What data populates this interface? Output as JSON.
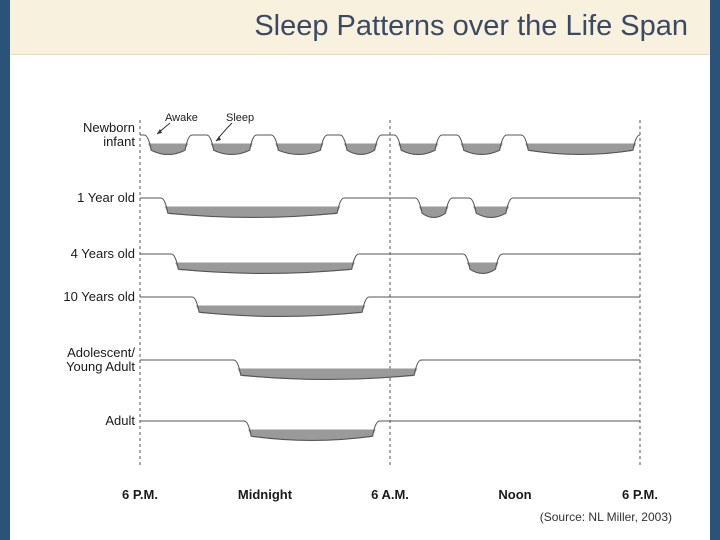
{
  "slide": {
    "title": "Sleep Patterns over the Life Span",
    "source": "(Source: NL Miller, 2003)"
  },
  "diagram": {
    "legend": {
      "awake": "Awake",
      "sleep": "Sleep"
    },
    "time_labels": [
      "6 P.M.",
      "Midnight",
      "6 A.M.",
      "Noon",
      "6 P.M."
    ],
    "rows": [
      {
        "label_lines": [
          "Newborn",
          "infant"
        ],
        "sleep_periods": [
          [
            18.2,
            20.5
          ],
          [
            21.2,
            23.6
          ],
          [
            24.3,
            27.0
          ],
          [
            27.6,
            29.6
          ],
          [
            30.2,
            32.5
          ],
          [
            33.2,
            35.6
          ],
          [
            36.3,
            42.0
          ]
        ]
      },
      {
        "label_lines": [
          "1 Year old"
        ],
        "sleep_periods": [
          [
            19.0,
            27.8
          ],
          [
            31.2,
            33.0
          ],
          [
            33.8,
            35.9
          ]
        ]
      },
      {
        "label_lines": [
          "4 Years old"
        ],
        "sleep_periods": [
          [
            19.5,
            28.5
          ],
          [
            33.5,
            35.4
          ]
        ]
      },
      {
        "label_lines": [
          "10 Years old"
        ],
        "sleep_periods": [
          [
            20.5,
            29.0
          ]
        ]
      },
      {
        "label_lines": [
          "Adolescent/",
          "Young Adult"
        ],
        "sleep_periods": [
          [
            22.5,
            31.5
          ]
        ]
      },
      {
        "label_lines": [
          "Adult"
        ],
        "sleep_periods": [
          [
            23.0,
            29.5
          ]
        ]
      }
    ]
  }
}
